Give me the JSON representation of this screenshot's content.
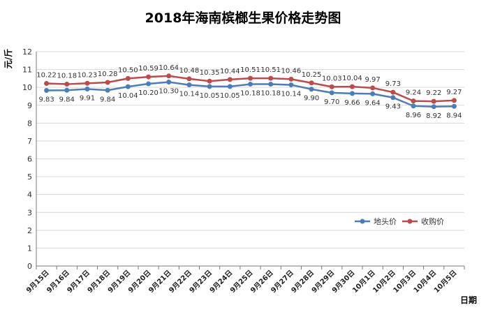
{
  "chart_data": {
    "type": "line",
    "title": "2018年海南槟榔生果价格走势图",
    "ylabel": "元/斤",
    "xlabel": "日期",
    "ylim": [
      0,
      12
    ],
    "yticks": [
      0,
      1,
      2,
      3,
      4,
      5,
      6,
      7,
      8,
      9,
      10,
      11,
      12
    ],
    "grid": true,
    "legend_position": "right",
    "categories": [
      "9月15日",
      "9月16日",
      "9月17日",
      "9月18日",
      "9月19日",
      "9月20日",
      "9月21日",
      "9月22日",
      "9月23日",
      "9月24日",
      "9月25日",
      "9月26日",
      "9月27日",
      "9月28日",
      "9月29日",
      "9月30日",
      "10月1日",
      "10月2日",
      "10月3日",
      "10月4日",
      "10月5日"
    ],
    "series": [
      {
        "name": "地头价",
        "color": "#4a7ebb",
        "values": [
          9.83,
          9.84,
          9.91,
          9.84,
          10.04,
          10.2,
          10.3,
          10.14,
          10.05,
          10.05,
          10.18,
          10.18,
          10.14,
          9.9,
          9.7,
          9.66,
          9.64,
          9.43,
          8.96,
          8.92,
          8.94
        ]
      },
      {
        "name": "收购价",
        "color": "#be4b48",
        "values": [
          10.22,
          10.18,
          10.23,
          10.28,
          10.5,
          10.59,
          10.64,
          10.48,
          10.35,
          10.44,
          10.51,
          10.51,
          10.46,
          10.25,
          10.03,
          10.04,
          9.97,
          9.73,
          9.24,
          9.22,
          9.27
        ]
      }
    ]
  }
}
